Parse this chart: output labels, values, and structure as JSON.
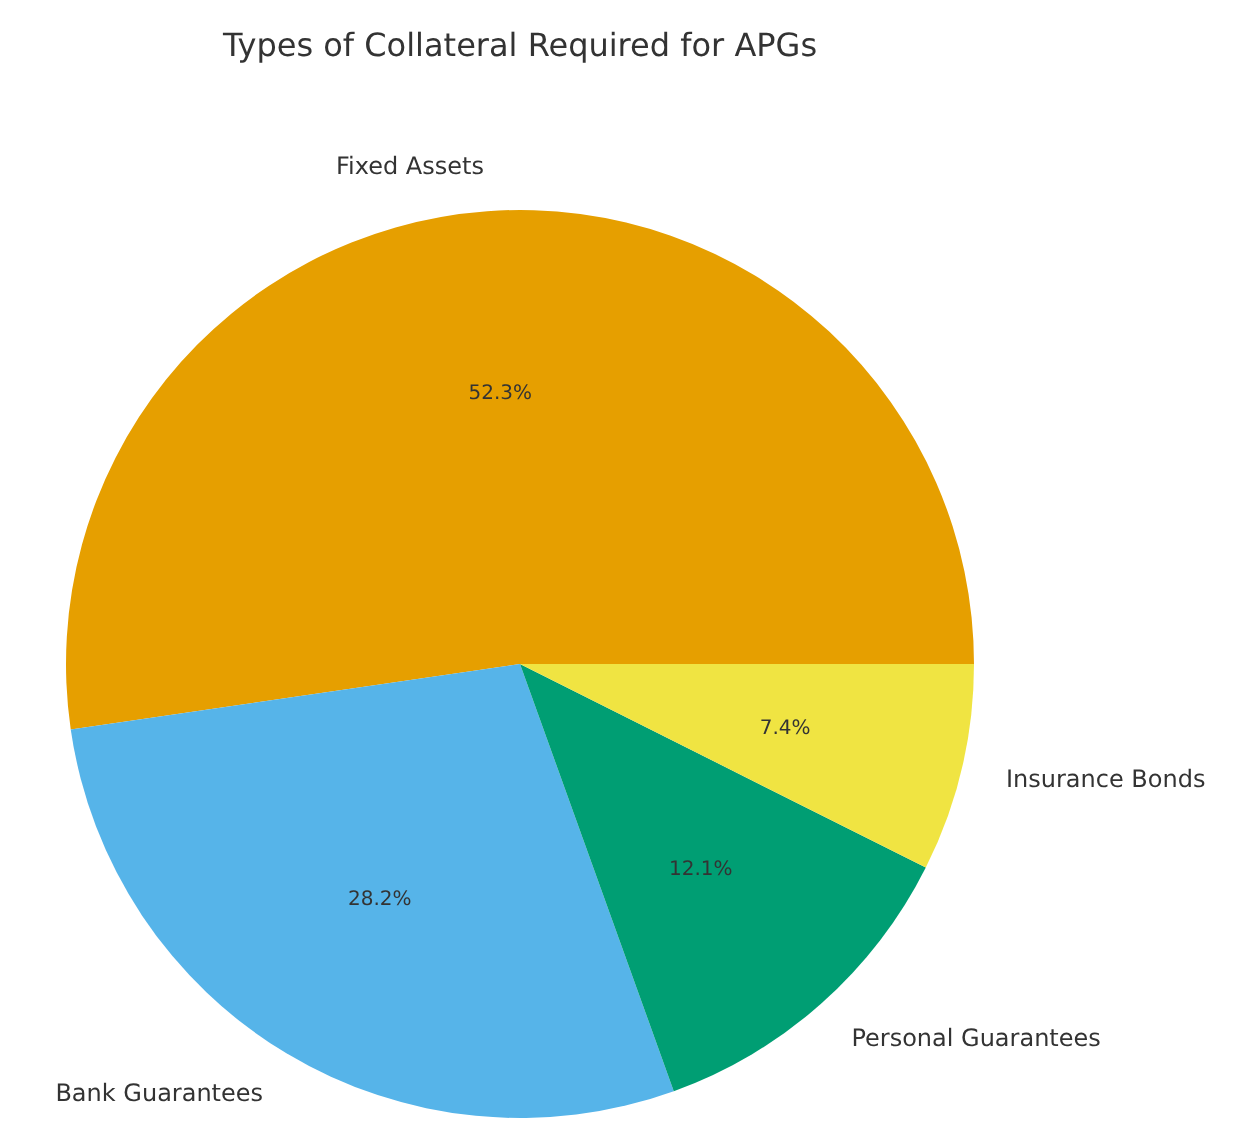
{
  "chart_data": {
    "type": "pie",
    "title": "Types of Collateral Required for APGs",
    "categories": [
      "Fixed Assets",
      "Bank Guarantees",
      "Personal Guarantees",
      "Insurance Bonds"
    ],
    "values": [
      52.3,
      28.2,
      12.1,
      7.4
    ],
    "value_labels": [
      "52.3%",
      "28.2%",
      "12.1%",
      "7.4%"
    ],
    "colors": [
      "#e69f00",
      "#56b4e9",
      "#009e73",
      "#f0e442"
    ]
  }
}
